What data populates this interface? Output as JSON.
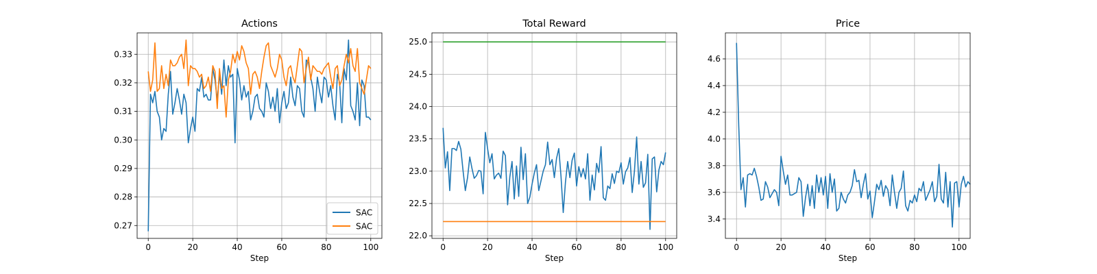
{
  "colors": {
    "blue": "#1f77b4",
    "orange": "#ff7f0e",
    "green": "#2ca02c",
    "grid": "#b0b0b0",
    "frame": "#000000"
  },
  "chart_data": [
    {
      "type": "line",
      "title": "Actions",
      "xlabel": "Step",
      "ylabel": "",
      "xlim": [
        -5,
        105
      ],
      "ylim": [
        0.2655,
        0.3375
      ],
      "xticks": [
        0,
        20,
        40,
        60,
        80,
        100
      ],
      "yticks": [
        0.27,
        0.28,
        0.29,
        0.3,
        0.31,
        0.32,
        0.33
      ],
      "ytick_labels": [
        "0.27",
        "0.28",
        "0.29",
        "0.30",
        "0.31",
        "0.32",
        "0.33"
      ],
      "grid": true,
      "legend": "bottom-right",
      "series": [
        {
          "name": "SAC",
          "color": "#1f77b4",
          "x_start": 0,
          "x_step": 1,
          "values": [
            0.268,
            0.316,
            0.313,
            0.317,
            0.31,
            0.308,
            0.3,
            0.304,
            0.303,
            0.316,
            0.324,
            0.309,
            0.313,
            0.318,
            0.314,
            0.309,
            0.316,
            0.313,
            0.299,
            0.304,
            0.308,
            0.303,
            0.318,
            0.317,
            0.322,
            0.315,
            0.316,
            0.314,
            0.314,
            0.325,
            0.321,
            0.314,
            0.323,
            0.316,
            0.328,
            0.319,
            0.326,
            0.322,
            0.323,
            0.299,
            0.325,
            0.321,
            0.314,
            0.319,
            0.315,
            0.317,
            0.307,
            0.31,
            0.315,
            0.316,
            0.311,
            0.31,
            0.308,
            0.32,
            0.317,
            0.311,
            0.315,
            0.31,
            0.318,
            0.306,
            0.313,
            0.317,
            0.311,
            0.313,
            0.322,
            0.315,
            0.312,
            0.319,
            0.318,
            0.31,
            0.308,
            0.328,
            0.327,
            0.322,
            0.318,
            0.31,
            0.322,
            0.317,
            0.313,
            0.322,
            0.321,
            0.315,
            0.319,
            0.312,
            0.307,
            0.323,
            0.32,
            0.306,
            0.325,
            0.321,
            0.335,
            0.312,
            0.31,
            0.307,
            0.32,
            0.305,
            0.321,
            0.319,
            0.308,
            0.308,
            0.307
          ]
        },
        {
          "name": "SAC",
          "color": "#ff7f0e",
          "x_start": 0,
          "x_step": 1,
          "values": [
            0.324,
            0.317,
            0.321,
            0.334,
            0.317,
            0.318,
            0.326,
            0.318,
            0.323,
            0.319,
            0.328,
            0.326,
            0.326,
            0.327,
            0.329,
            0.33,
            0.325,
            0.335,
            0.319,
            0.326,
            0.325,
            0.325,
            0.324,
            0.322,
            0.323,
            0.318,
            0.319,
            0.322,
            0.317,
            0.326,
            0.324,
            0.311,
            0.325,
            0.318,
            0.319,
            0.308,
            0.321,
            0.324,
            0.33,
            0.327,
            0.331,
            0.328,
            0.333,
            0.331,
            0.327,
            0.325,
            0.316,
            0.323,
            0.324,
            0.322,
            0.318,
            0.324,
            0.329,
            0.333,
            0.334,
            0.326,
            0.324,
            0.322,
            0.325,
            0.33,
            0.328,
            0.322,
            0.319,
            0.325,
            0.326,
            0.322,
            0.32,
            0.326,
            0.332,
            0.331,
            0.32,
            0.325,
            0.329,
            0.321,
            0.326,
            0.325,
            0.324,
            0.324,
            0.323,
            0.325,
            0.326,
            0.327,
            0.322,
            0.318,
            0.325,
            0.326,
            0.319,
            0.321,
            0.326,
            0.33,
            0.327,
            0.332,
            0.326,
            0.324,
            0.332,
            0.32,
            0.318,
            0.316,
            0.321,
            0.326,
            0.325
          ]
        }
      ]
    },
    {
      "type": "line",
      "title": "Total Reward",
      "xlabel": "Step",
      "ylabel": "",
      "xlim": [
        -5,
        105
      ],
      "ylim": [
        21.96,
        25.14
      ],
      "xticks": [
        0,
        20,
        40,
        60,
        80,
        100
      ],
      "yticks": [
        22.0,
        22.5,
        23.0,
        23.5,
        24.0,
        24.5,
        25.0
      ],
      "ytick_labels": [
        "22.0",
        "22.5",
        "23.0",
        "23.5",
        "24.0",
        "24.5",
        "25.0"
      ],
      "grid": true,
      "series": [
        {
          "color": "#1f77b4",
          "x_start": 0,
          "x_step": 1,
          "values": [
            23.67,
            23.05,
            23.3,
            22.7,
            23.35,
            23.35,
            23.32,
            23.46,
            23.34,
            23.0,
            22.7,
            22.9,
            23.22,
            23.04,
            22.89,
            22.93,
            23.01,
            23.0,
            22.65,
            23.6,
            23.35,
            23.13,
            23.27,
            22.88,
            22.94,
            22.97,
            22.89,
            23.31,
            23.24,
            22.48,
            22.91,
            23.15,
            22.57,
            23.08,
            22.61,
            23.37,
            22.87,
            23.27,
            22.5,
            22.6,
            22.8,
            22.97,
            23.1,
            22.7,
            22.85,
            23.0,
            23.1,
            23.45,
            23.1,
            23.18,
            22.9,
            23.2,
            23.35,
            22.92,
            22.36,
            22.83,
            23.15,
            22.9,
            23.17,
            23.28,
            22.77,
            23.07,
            22.91,
            23.04,
            22.88,
            23.27,
            22.55,
            22.94,
            22.71,
            23.12,
            22.98,
            23.38,
            22.59,
            22.55,
            22.77,
            22.73,
            22.96,
            22.81,
            23.0,
            22.98,
            23.13,
            22.8,
            22.99,
            23.05,
            23.21,
            22.67,
            23.0,
            23.53,
            22.8,
            23.15,
            22.75,
            22.82,
            23.26,
            22.1,
            23.19,
            23.22,
            22.68,
            23.02,
            23.15,
            23.1,
            23.29
          ]
        },
        {
          "color": "#2ca02c",
          "x": [
            0,
            100
          ],
          "values": [
            25.0,
            25.0
          ]
        },
        {
          "color": "#ff7f0e",
          "x": [
            0,
            100
          ],
          "values": [
            22.22,
            22.22
          ]
        }
      ]
    },
    {
      "type": "line",
      "title": "Price",
      "xlabel": "Step",
      "ylabel": "",
      "xlim": [
        -5,
        105
      ],
      "ylim": [
        3.255,
        4.795
      ],
      "xticks": [
        0,
        20,
        40,
        60,
        80,
        100
      ],
      "yticks": [
        3.4,
        3.6,
        3.8,
        4.0,
        4.2,
        4.4,
        4.6
      ],
      "ytick_labels": [
        "3.4",
        "3.6",
        "3.8",
        "4.0",
        "4.2",
        "4.4",
        "4.6"
      ],
      "grid": true,
      "series": [
        {
          "color": "#1f77b4",
          "x_start": 0,
          "x_step": 1,
          "values": [
            4.72,
            4.1,
            3.62,
            3.71,
            3.49,
            3.73,
            3.74,
            3.73,
            3.78,
            3.72,
            3.64,
            3.54,
            3.55,
            3.68,
            3.64,
            3.56,
            3.59,
            3.62,
            3.6,
            3.5,
            3.87,
            3.76,
            3.66,
            3.73,
            3.58,
            3.58,
            3.59,
            3.6,
            3.71,
            3.68,
            3.42,
            3.56,
            3.66,
            3.5,
            3.65,
            3.48,
            3.73,
            3.6,
            3.71,
            3.58,
            3.72,
            3.48,
            3.74,
            3.6,
            3.7,
            3.46,
            3.48,
            3.6,
            3.55,
            3.52,
            3.58,
            3.6,
            3.65,
            3.77,
            3.68,
            3.69,
            3.56,
            3.66,
            3.74,
            3.55,
            3.61,
            3.41,
            3.53,
            3.66,
            3.62,
            3.69,
            3.57,
            3.65,
            3.62,
            3.5,
            3.73,
            3.6,
            3.48,
            3.6,
            3.63,
            3.76,
            3.5,
            3.46,
            3.54,
            3.52,
            3.58,
            3.53,
            3.63,
            3.61,
            3.68,
            3.54,
            3.58,
            3.62,
            3.68,
            3.53,
            3.57,
            3.81,
            3.55,
            3.52,
            3.75,
            3.49,
            3.68,
            3.34,
            3.67,
            3.68,
            3.49,
            3.66,
            3.72,
            3.64,
            3.68,
            3.66
          ]
        }
      ]
    }
  ]
}
